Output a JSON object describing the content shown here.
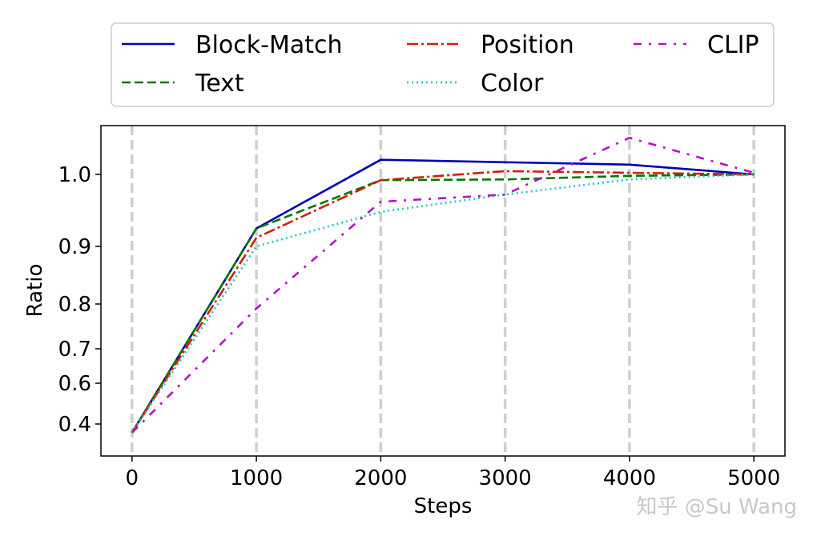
{
  "chart_data": {
    "type": "line",
    "xlabel": "Steps",
    "ylabel": "Ratio",
    "x": [
      0,
      1000,
      2000,
      3000,
      4000,
      5000
    ],
    "xticks": [
      "0",
      "1000",
      "2000",
      "3000",
      "4000",
      "5000"
    ],
    "yticks": [
      {
        "value": 0.4,
        "label": "0.4"
      },
      {
        "value": 0.6,
        "label": "0.6"
      },
      {
        "value": 0.7,
        "label": "0.7"
      },
      {
        "value": 0.8,
        "label": "0.8"
      },
      {
        "value": 0.9,
        "label": "0.9"
      },
      {
        "value": 1.0,
        "label": "1.0"
      }
    ],
    "xlim": [
      -250,
      5250
    ],
    "ylim": [
      0.28,
      1.06
    ],
    "y_scale": "nonlinear",
    "grid": "vertical dashed at x ticks",
    "legend_position": "top, above plot",
    "series": [
      {
        "name": "Block-Match",
        "color": "#0000b4",
        "dash": "solid",
        "values": [
          0.35,
          0.925,
          1.018,
          1.015,
          1.012,
          1.0
        ]
      },
      {
        "name": "Text",
        "color": "#007800",
        "dash": "dashed",
        "values": [
          0.35,
          0.925,
          0.992,
          0.993,
          0.998,
          1.0
        ]
      },
      {
        "name": "Position",
        "color": "#d21e00",
        "dash": "dashdot",
        "values": [
          0.35,
          0.912,
          0.992,
          1.004,
          1.002,
          1.0
        ]
      },
      {
        "name": "Color",
        "color": "#28c3c3",
        "dash": "dotted",
        "values": [
          0.35,
          0.9,
          0.948,
          0.972,
          0.993,
          1.0
        ]
      },
      {
        "name": "CLIP",
        "color": "#b40fc8",
        "dash": "dashdotsparse",
        "values": [
          0.35,
          0.79,
          0.962,
          0.972,
          1.045,
          1.002
        ]
      }
    ]
  },
  "watermark": "知乎 @Su Wang"
}
